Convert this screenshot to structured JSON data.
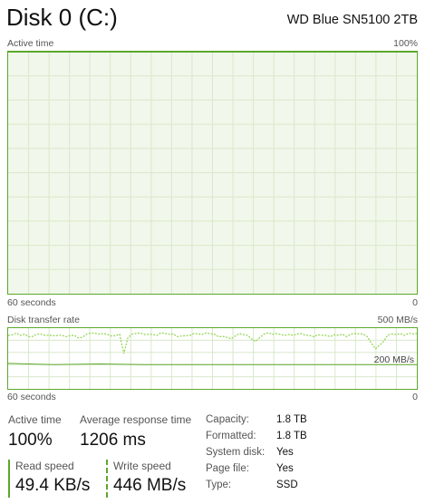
{
  "header": {
    "title": "Disk 0 (C:)",
    "model": "WD Blue SN5100 2TB"
  },
  "active_chart": {
    "label": "Active time",
    "max_label": "100%",
    "x_label": "60 seconds",
    "min_label": "0"
  },
  "transfer_chart": {
    "label": "Disk transfer rate",
    "max_label": "500 MB/s",
    "x_label": "60 seconds",
    "min_label": "0",
    "ref_label": "200 MB/s"
  },
  "stats": {
    "active_time": {
      "label": "Active time",
      "value": "100%"
    },
    "avg_response": {
      "label": "Average response time",
      "value": "1206 ms"
    },
    "read_speed": {
      "label": "Read speed",
      "value": "49.4 KB/s"
    },
    "write_speed": {
      "label": "Write speed",
      "value": "446 MB/s"
    }
  },
  "properties": [
    {
      "key": "Capacity:",
      "value": "1.8 TB"
    },
    {
      "key": "Formatted:",
      "value": "1.8 TB"
    },
    {
      "key": "System disk:",
      "value": "Yes"
    },
    {
      "key": "Page file:",
      "value": "Yes"
    },
    {
      "key": "Type:",
      "value": "SSD"
    }
  ],
  "chart_data": [
    {
      "type": "area",
      "title": "Active time",
      "xlabel": "60 seconds",
      "ylim": [
        0,
        100
      ],
      "series": [
        {
          "values": [
            100,
            100,
            100,
            100,
            100,
            100,
            100,
            100,
            100,
            100,
            100,
            100,
            100,
            100,
            100,
            100,
            100,
            100,
            100,
            100,
            100,
            100,
            100,
            100,
            100,
            100,
            100,
            100,
            100,
            100,
            100,
            100,
            100,
            100,
            100,
            100,
            100,
            100,
            100,
            100,
            100,
            100,
            100,
            100,
            100,
            100,
            100,
            100,
            100,
            100,
            100,
            100,
            100,
            100,
            100,
            100,
            100,
            100,
            100,
            100
          ]
        }
      ],
      "colors": {
        "line": "#5ca82a",
        "fill": "#f1f7ea",
        "grid": "#d9e8cb"
      }
    },
    {
      "type": "line",
      "title": "Disk transfer rate",
      "xlabel": "60 seconds",
      "ylim": [
        0,
        500
      ],
      "series": [
        {
          "values": [
            440,
            445,
            460,
            440,
            450,
            430,
            432,
            452,
            450,
            440,
            442,
            437,
            440,
            442,
            430,
            438,
            442,
            420,
            425,
            450,
            460,
            458,
            450,
            455,
            450,
            435,
            438,
            450,
            290,
            420,
            450,
            457,
            460,
            448,
            450,
            448,
            440,
            462,
            455,
            450,
            452,
            430,
            435,
            438,
            440,
            455,
            452,
            448,
            462,
            453,
            450,
            428,
            432,
            425,
            412,
            435,
            455,
            447,
            440,
            410,
            390,
            425,
            450,
            462,
            450,
            455,
            448,
            440,
            448,
            440,
            452,
            455,
            442,
            440,
            430,
            445,
            442,
            440,
            430,
            445,
            440,
            450,
            430,
            450,
            455,
            453,
            452,
            430,
            375,
            330,
            360,
            395,
            445,
            452,
            447,
            455,
            440,
            458,
            452,
            457
          ]
        },
        {
          "values": [
            210,
            200,
            205,
            200,
            200,
            200,
            200,
            200,
            200,
            200
          ]
        }
      ],
      "colors": {
        "line": "#5ca82a",
        "dotted": "#8fd44a",
        "grid": "#d9e8cb"
      }
    }
  ]
}
